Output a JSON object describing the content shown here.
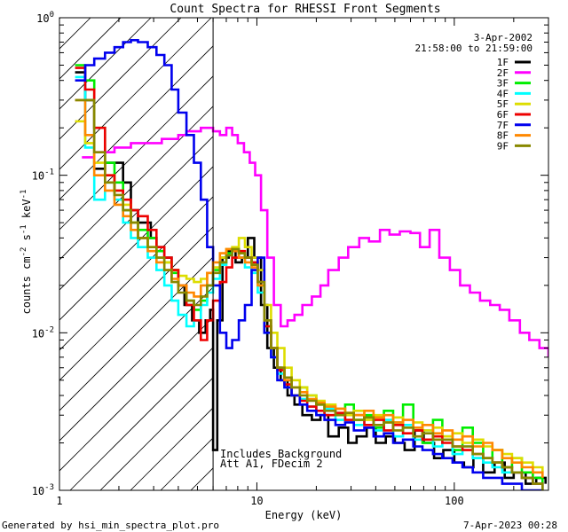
{
  "chart_data": {
    "type": "line",
    "title": "Count Spectra for RHESSI Front Segments",
    "xlabel": "Energy (keV)",
    "ylabel": "counts cm",
    "ylabel_parts": [
      "counts cm",
      "-2",
      " s",
      "-1",
      " keV",
      "-1"
    ],
    "x_scale": "log",
    "y_scale": "log",
    "xlim": [
      1,
      300
    ],
    "ylim": [
      0.001,
      1
    ],
    "x_ticks": [
      {
        "v": 1,
        "label": "1"
      },
      {
        "v": 10,
        "label": "10"
      },
      {
        "v": 100,
        "label": "100"
      }
    ],
    "y_ticks": [
      {
        "v": 1,
        "base": "10",
        "exp": "0"
      },
      {
        "v": 0.1,
        "base": "10",
        "exp": "-1"
      },
      {
        "v": 0.01,
        "base": "10",
        "exp": "-2"
      },
      {
        "v": 0.001,
        "base": "10",
        "exp": "-3"
      }
    ],
    "legend_position": "top-right",
    "legend_header": [
      "3-Apr-2002",
      "21:58:00 to 21:59:00"
    ],
    "annotations": [
      "Includes Background",
      "Att A1, FDecim 2"
    ],
    "attenuator_energy_keV": 6.0,
    "series": [
      {
        "name": "1F",
        "color": "#000000",
        "x": [
          1.2,
          1.35,
          1.5,
          1.7,
          1.9,
          2.1,
          2.3,
          2.5,
          2.7,
          2.9,
          3.1,
          3.4,
          3.7,
          4.0,
          4.3,
          4.7,
          5.1,
          5.5,
          5.8,
          6.0,
          6.3,
          6.7,
          7.2,
          7.8,
          8.4,
          9.0,
          9.7,
          10.5,
          11.3,
          12.2,
          13.2,
          14.3,
          15.5,
          17,
          19,
          21,
          23,
          26,
          29,
          32,
          36,
          40,
          45,
          50,
          56,
          63,
          70,
          79,
          88,
          100,
          112,
          125,
          140,
          160,
          180,
          200,
          230,
          260,
          290
        ],
        "y": [
          0.45,
          0.3,
          0.11,
          0.12,
          0.12,
          0.09,
          0.06,
          0.05,
          0.05,
          0.04,
          0.035,
          0.03,
          0.025,
          0.02,
          0.015,
          0.012,
          0.01,
          0.012,
          0.014,
          0.0018,
          0.012,
          0.03,
          0.033,
          0.028,
          0.03,
          0.04,
          0.03,
          0.015,
          0.008,
          0.006,
          0.005,
          0.004,
          0.0035,
          0.003,
          0.0028,
          0.003,
          0.0022,
          0.0025,
          0.002,
          0.0022,
          0.0025,
          0.002,
          0.0022,
          0.002,
          0.0018,
          0.0024,
          0.002,
          0.0016,
          0.0018,
          0.0015,
          0.0014,
          0.0016,
          0.0013,
          0.0015,
          0.0012,
          0.0013,
          0.0011,
          0.0012,
          0.0011
        ]
      },
      {
        "name": "2F",
        "color": "#ff00ff",
        "x": [
          1.3,
          1.5,
          1.7,
          1.9,
          2.1,
          2.3,
          2.5,
          2.7,
          3.0,
          3.3,
          3.6,
          4.0,
          4.4,
          4.8,
          5.2,
          5.6,
          6.0,
          6.5,
          7.0,
          7.5,
          8.0,
          8.6,
          9.2,
          9.8,
          10.5,
          11.3,
          12.2,
          13.2,
          14.3,
          15.5,
          17,
          19,
          21,
          23,
          26,
          29,
          33,
          37,
          42,
          47,
          53,
          60,
          67,
          75,
          84,
          95,
          107,
          120,
          135,
          152,
          170,
          190,
          215,
          240,
          270,
          300
        ],
        "y": [
          0.13,
          0.14,
          0.14,
          0.15,
          0.15,
          0.16,
          0.16,
          0.16,
          0.16,
          0.17,
          0.17,
          0.18,
          0.19,
          0.19,
          0.2,
          0.2,
          0.19,
          0.18,
          0.2,
          0.18,
          0.16,
          0.14,
          0.12,
          0.1,
          0.06,
          0.03,
          0.015,
          0.011,
          0.012,
          0.013,
          0.015,
          0.017,
          0.02,
          0.025,
          0.03,
          0.035,
          0.04,
          0.038,
          0.045,
          0.042,
          0.044,
          0.043,
          0.035,
          0.045,
          0.03,
          0.025,
          0.02,
          0.018,
          0.016,
          0.015,
          0.014,
          0.012,
          0.01,
          0.009,
          0.008,
          0.007
        ]
      },
      {
        "name": "3F",
        "color": "#00ee00",
        "x": [
          1.2,
          1.35,
          1.5,
          1.7,
          1.9,
          2.1,
          2.3,
          2.5,
          2.8,
          3.1,
          3.4,
          3.7,
          4.0,
          4.4,
          4.8,
          5.2,
          5.6,
          6.0,
          6.5,
          7.0,
          7.5,
          8.1,
          8.7,
          9.4,
          10.1,
          10.9,
          11.8,
          12.7,
          13.8,
          15,
          16.5,
          18,
          20,
          22,
          25,
          28,
          31,
          35,
          39,
          44,
          49,
          55,
          62,
          69,
          78,
          87,
          98,
          110,
          124,
          140,
          156,
          175,
          196,
          220,
          250,
          280
        ],
        "y": [
          0.5,
          0.4,
          0.2,
          0.12,
          0.09,
          0.06,
          0.05,
          0.045,
          0.04,
          0.033,
          0.028,
          0.024,
          0.02,
          0.016,
          0.014,
          0.016,
          0.02,
          0.025,
          0.028,
          0.032,
          0.034,
          0.032,
          0.03,
          0.028,
          0.02,
          0.011,
          0.008,
          0.006,
          0.005,
          0.004,
          0.0045,
          0.004,
          0.0035,
          0.0033,
          0.003,
          0.0035,
          0.0028,
          0.003,
          0.0025,
          0.0032,
          0.0027,
          0.0035,
          0.0025,
          0.002,
          0.0028,
          0.0022,
          0.0018,
          0.0025,
          0.002,
          0.0016,
          0.0018,
          0.0014,
          0.0016,
          0.0013,
          0.0012,
          0.0011
        ]
      },
      {
        "name": "4F",
        "color": "#00ffff",
        "x": [
          1.2,
          1.35,
          1.5,
          1.7,
          1.9,
          2.1,
          2.3,
          2.5,
          2.8,
          3.1,
          3.4,
          3.7,
          4.0,
          4.4,
          4.8,
          5.2,
          5.6,
          6.0,
          6.5,
          7.0,
          7.5,
          8.1,
          8.7,
          9.4,
          10.1,
          10.9,
          11.8,
          12.7,
          13.8,
          15,
          16.5,
          18,
          20,
          22,
          25,
          28,
          31,
          35,
          39,
          44,
          49,
          55,
          62,
          69,
          78,
          87,
          98,
          110,
          124,
          140,
          156,
          175,
          196,
          220,
          250,
          280
        ],
        "y": [
          0.42,
          0.15,
          0.07,
          0.09,
          0.07,
          0.05,
          0.04,
          0.035,
          0.03,
          0.025,
          0.02,
          0.016,
          0.013,
          0.011,
          0.012,
          0.015,
          0.018,
          0.022,
          0.027,
          0.031,
          0.033,
          0.03,
          0.026,
          0.024,
          0.018,
          0.01,
          0.007,
          0.0055,
          0.0045,
          0.004,
          0.0038,
          0.0034,
          0.003,
          0.0033,
          0.0028,
          0.003,
          0.0026,
          0.0029,
          0.0024,
          0.0028,
          0.0022,
          0.0026,
          0.0021,
          0.0024,
          0.0019,
          0.0021,
          0.0017,
          0.0019,
          0.0016,
          0.0015,
          0.0014,
          0.0013,
          0.0013,
          0.0012,
          0.0011,
          0.001
        ]
      },
      {
        "name": "5F",
        "color": "#dddd00",
        "x": [
          1.2,
          1.35,
          1.5,
          1.7,
          1.9,
          2.1,
          2.3,
          2.5,
          2.8,
          3.1,
          3.4,
          3.7,
          4.0,
          4.4,
          4.8,
          5.2,
          5.6,
          6.0,
          6.5,
          7.0,
          7.5,
          8.1,
          8.7,
          9.4,
          10.1,
          10.9,
          11.8,
          12.7,
          13.8,
          15,
          16.5,
          18,
          20,
          22,
          25,
          28,
          31,
          35,
          39,
          44,
          49,
          55,
          62,
          69,
          78,
          87,
          98,
          110,
          124,
          140,
          156,
          175,
          196,
          220,
          250,
          280
        ],
        "y": [
          0.22,
          0.16,
          0.12,
          0.1,
          0.08,
          0.065,
          0.05,
          0.04,
          0.035,
          0.03,
          0.028,
          0.025,
          0.023,
          0.022,
          0.021,
          0.022,
          0.024,
          0.026,
          0.03,
          0.034,
          0.035,
          0.04,
          0.035,
          0.03,
          0.025,
          0.015,
          0.01,
          0.008,
          0.006,
          0.005,
          0.0045,
          0.004,
          0.0037,
          0.0035,
          0.0033,
          0.003,
          0.0032,
          0.0028,
          0.003,
          0.0027,
          0.0029,
          0.0025,
          0.0027,
          0.0024,
          0.0025,
          0.0022,
          0.0023,
          0.002,
          0.0021,
          0.0019,
          0.0018,
          0.0017,
          0.0016,
          0.0015,
          0.0014,
          0.0013
        ]
      },
      {
        "name": "6F",
        "color": "#ee0000",
        "x": [
          1.2,
          1.35,
          1.5,
          1.7,
          1.9,
          2.1,
          2.3,
          2.5,
          2.8,
          3.1,
          3.4,
          3.7,
          4.0,
          4.4,
          4.8,
          5.2,
          5.6,
          6.0,
          6.5,
          7.0,
          7.5,
          8.1,
          8.7,
          9.4,
          10.1,
          10.9,
          11.8,
          12.7,
          13.8,
          15,
          16.5,
          18,
          20,
          22,
          25,
          28,
          31,
          35,
          39,
          44,
          49,
          55,
          62,
          69,
          78,
          87,
          98,
          110,
          124,
          140,
          156,
          175,
          196,
          220,
          250,
          280
        ],
        "y": [
          0.48,
          0.35,
          0.2,
          0.1,
          0.08,
          0.07,
          0.06,
          0.055,
          0.045,
          0.035,
          0.03,
          0.025,
          0.02,
          0.015,
          0.012,
          0.009,
          0.012,
          0.016,
          0.021,
          0.026,
          0.03,
          0.033,
          0.03,
          0.028,
          0.021,
          0.011,
          0.008,
          0.0058,
          0.0047,
          0.004,
          0.0037,
          0.0034,
          0.0032,
          0.003,
          0.0031,
          0.0028,
          0.003,
          0.0026,
          0.0028,
          0.0024,
          0.0026,
          0.0023,
          0.0024,
          0.0021,
          0.0022,
          0.002,
          0.0019,
          0.0018,
          0.0017,
          0.0016,
          0.0015,
          0.0014,
          0.0013,
          0.0012,
          0.0011,
          0.001
        ]
      },
      {
        "name": "7F",
        "color": "#0000ee",
        "x": [
          1.2,
          1.35,
          1.5,
          1.7,
          1.9,
          2.1,
          2.3,
          2.5,
          2.8,
          3.1,
          3.4,
          3.7,
          4.0,
          4.4,
          4.8,
          5.2,
          5.6,
          6.0,
          6.5,
          7.0,
          7.5,
          8.1,
          8.7,
          9.4,
          10.1,
          10.9,
          11.8,
          12.7,
          13.8,
          15,
          16.5,
          18,
          20,
          22,
          25,
          28,
          31,
          35,
          39,
          44,
          49,
          55,
          62,
          69,
          78,
          87,
          98,
          110,
          124,
          140,
          156,
          175,
          196,
          220,
          250,
          280
        ],
        "y": [
          0.4,
          0.5,
          0.55,
          0.6,
          0.65,
          0.7,
          0.72,
          0.7,
          0.65,
          0.58,
          0.5,
          0.35,
          0.25,
          0.18,
          0.12,
          0.07,
          0.035,
          0.02,
          0.01,
          0.008,
          0.009,
          0.012,
          0.015,
          0.025,
          0.03,
          0.01,
          0.007,
          0.005,
          0.0045,
          0.004,
          0.0035,
          0.0032,
          0.003,
          0.0028,
          0.0026,
          0.0027,
          0.0024,
          0.0025,
          0.0022,
          0.0023,
          0.002,
          0.0021,
          0.0019,
          0.0018,
          0.0017,
          0.0016,
          0.0015,
          0.0014,
          0.0013,
          0.0012,
          0.0012,
          0.0011,
          0.0011,
          0.001,
          0.001,
          0.001
        ]
      },
      {
        "name": "8F",
        "color": "#ff8800",
        "x": [
          1.2,
          1.35,
          1.5,
          1.7,
          1.9,
          2.1,
          2.3,
          2.5,
          2.8,
          3.1,
          3.4,
          3.7,
          4.0,
          4.4,
          4.8,
          5.2,
          5.6,
          6.0,
          6.5,
          7.0,
          7.5,
          8.1,
          8.7,
          9.4,
          10.1,
          10.9,
          11.8,
          12.7,
          13.8,
          15,
          16.5,
          18,
          20,
          22,
          25,
          28,
          31,
          35,
          39,
          44,
          49,
          55,
          62,
          69,
          78,
          87,
          98,
          110,
          124,
          140,
          156,
          175,
          196,
          220,
          250,
          280
        ],
        "y": [
          0.3,
          0.18,
          0.1,
          0.08,
          0.065,
          0.055,
          0.045,
          0.04,
          0.033,
          0.028,
          0.025,
          0.022,
          0.02,
          0.018,
          0.017,
          0.02,
          0.024,
          0.028,
          0.032,
          0.034,
          0.033,
          0.03,
          0.028,
          0.026,
          0.02,
          0.012,
          0.008,
          0.006,
          0.005,
          0.0045,
          0.0042,
          0.0038,
          0.0036,
          0.0034,
          0.0033,
          0.0031,
          0.003,
          0.0032,
          0.0029,
          0.003,
          0.0027,
          0.0028,
          0.0025,
          0.0026,
          0.0023,
          0.0024,
          0.0021,
          0.0022,
          0.0019,
          0.002,
          0.0018,
          0.0016,
          0.0015,
          0.0014,
          0.0013,
          0.0012
        ]
      },
      {
        "name": "9F",
        "color": "#888800",
        "x": [
          1.2,
          1.35,
          1.5,
          1.7,
          1.9,
          2.1,
          2.3,
          2.5,
          2.8,
          3.1,
          3.4,
          3.7,
          4.0,
          4.4,
          4.8,
          5.2,
          5.6,
          6.0,
          6.5,
          7.0,
          7.5,
          8.1,
          8.7,
          9.4,
          10.1,
          10.9,
          11.8,
          12.7,
          13.8,
          15,
          16.5,
          18,
          20,
          22,
          25,
          28,
          31,
          35,
          39,
          44,
          49,
          55,
          62,
          69,
          78,
          87,
          98,
          110,
          124,
          140,
          156,
          175,
          196,
          220,
          250,
          280
        ],
        "y": [
          0.3,
          0.3,
          0.14,
          0.09,
          0.075,
          0.06,
          0.05,
          0.04,
          0.035,
          0.03,
          0.025,
          0.021,
          0.018,
          0.016,
          0.015,
          0.017,
          0.02,
          0.024,
          0.028,
          0.031,
          0.034,
          0.032,
          0.03,
          0.027,
          0.021,
          0.012,
          0.008,
          0.006,
          0.0052,
          0.0045,
          0.004,
          0.0037,
          0.0035,
          0.0032,
          0.003,
          0.0031,
          0.0028,
          0.0029,
          0.0026,
          0.0027,
          0.0024,
          0.0025,
          0.0022,
          0.0023,
          0.0021,
          0.0021,
          0.0019,
          0.0019,
          0.0017,
          0.0016,
          0.0015,
          0.0014,
          0.0013,
          0.0012,
          0.0011,
          0.001
        ]
      }
    ]
  },
  "footer": {
    "left": "Generated by hsi_min_spectra_plot.pro",
    "right": "7-Apr-2023 00:28"
  }
}
